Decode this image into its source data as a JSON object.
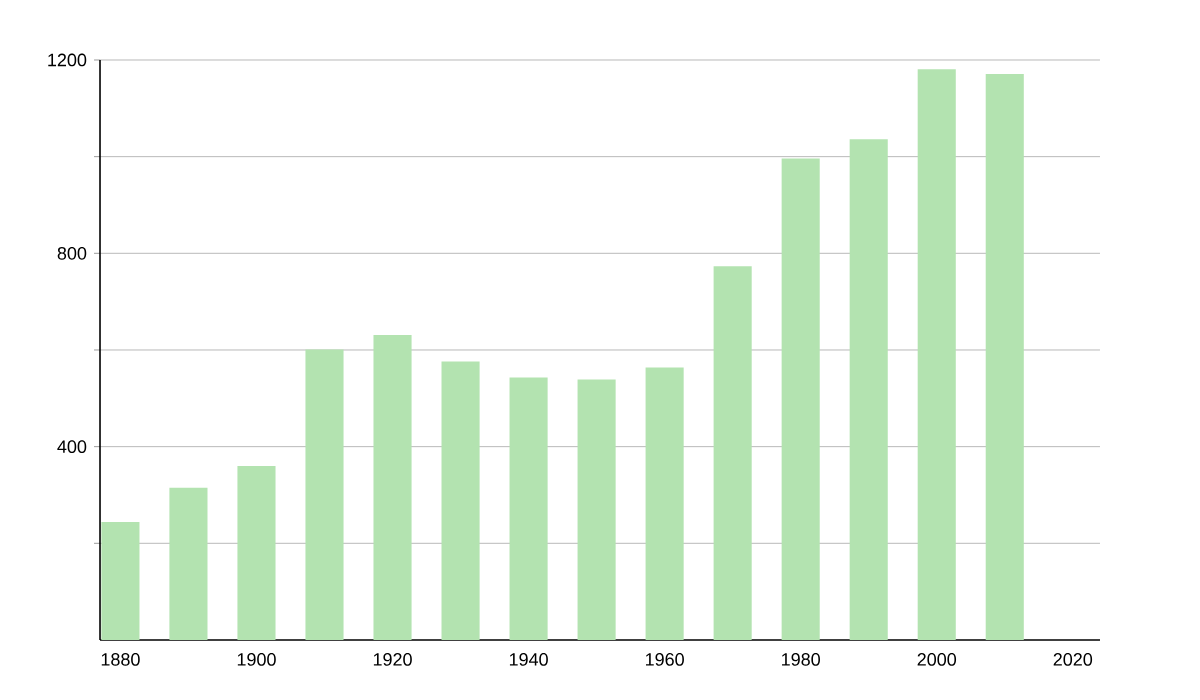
{
  "chart_data": {
    "type": "bar",
    "x": [
      1880,
      1890,
      1900,
      1910,
      1920,
      1930,
      1940,
      1950,
      1960,
      1970,
      1980,
      1990,
      2000,
      2010
    ],
    "values": [
      244,
      315,
      360,
      601,
      631,
      576,
      543,
      539,
      564,
      773,
      996,
      1036,
      1181,
      1171
    ],
    "color": "#b3e3b0",
    "xlim": [
      1877,
      2024
    ],
    "xticks": [
      1880,
      1900,
      1920,
      1940,
      1960,
      1980,
      2000,
      2020
    ],
    "ylim": [
      0,
      1200
    ],
    "yticks": [
      {
        "value": 200,
        "label": null
      },
      400,
      {
        "value": 600,
        "label": null
      },
      800,
      {
        "value": 1000,
        "label": null
      },
      1200
    ],
    "grid": "y"
  }
}
